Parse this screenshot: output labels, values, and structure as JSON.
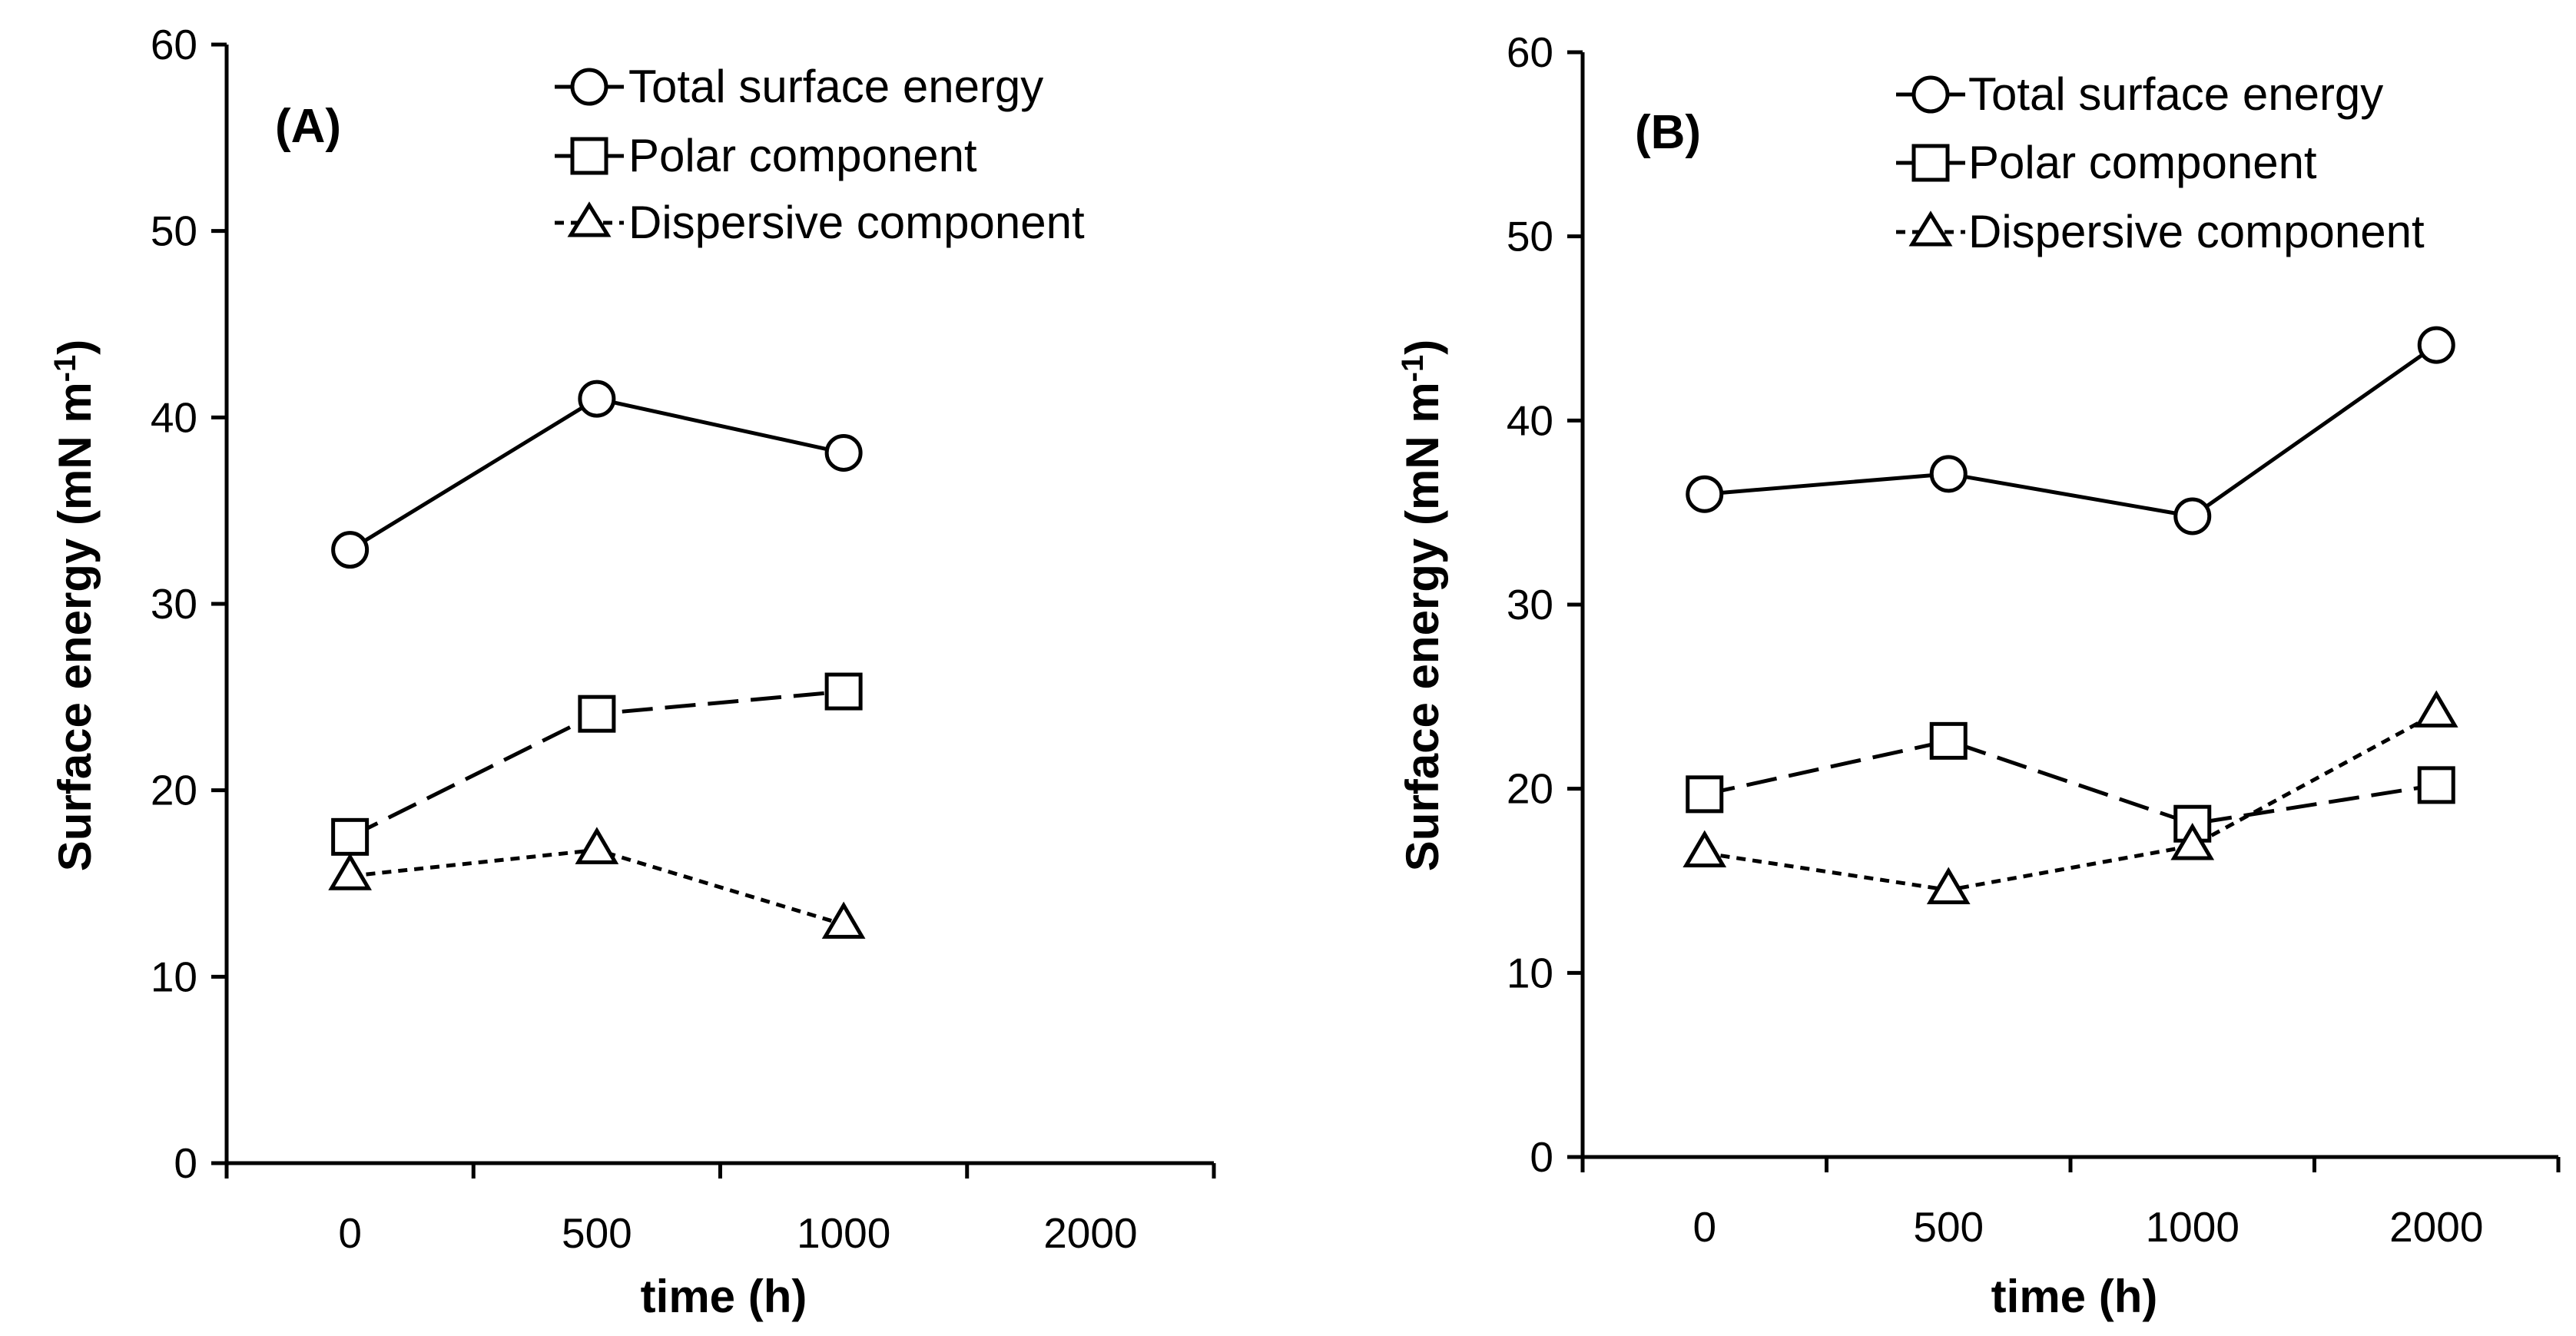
{
  "chart_data": [
    {
      "type": "line",
      "panel_label": "(A)",
      "xlabel": "time (h)",
      "ylabel": "Surface energy (mN m",
      "ylabel_sup": "-1",
      "ylabel_close": ")",
      "categories": [
        "0",
        "500",
        "1000",
        "2000"
      ],
      "ylim": [
        0,
        60
      ],
      "yticks": [
        "0",
        "10",
        "20",
        "30",
        "40",
        "50",
        "60"
      ],
      "legend_position": "top-right",
      "series": [
        {
          "name": "Total surface energy",
          "marker": "circle",
          "line": "solid",
          "values": [
            32.9,
            41.0,
            38.1,
            null
          ]
        },
        {
          "name": "Polar component",
          "marker": "square",
          "line": "long-dash",
          "values": [
            17.5,
            24.1,
            25.3,
            null
          ]
        },
        {
          "name": "Dispersive component",
          "marker": "triangle",
          "line": "short-dash",
          "values": [
            15.4,
            16.8,
            12.8,
            null
          ]
        }
      ]
    },
    {
      "type": "line",
      "panel_label": "(B)",
      "xlabel": "time (h)",
      "ylabel": "Surface energy (mN m",
      "ylabel_sup": "-1",
      "ylabel_close": ")",
      "categories": [
        "0",
        "500",
        "1000",
        "2000"
      ],
      "ylim": [
        0,
        60
      ],
      "yticks": [
        "0",
        "10",
        "20",
        "30",
        "40",
        "50",
        "60"
      ],
      "legend_position": "top-right",
      "series": [
        {
          "name": "Total surface energy",
          "marker": "circle",
          "line": "solid",
          "values": [
            36.0,
            37.1,
            34.8,
            44.1
          ]
        },
        {
          "name": "Polar component",
          "marker": "square",
          "line": "long-dash",
          "values": [
            19.7,
            22.6,
            18.1,
            20.2
          ]
        },
        {
          "name": "Dispersive component",
          "marker": "triangle",
          "line": "short-dash",
          "values": [
            16.5,
            14.5,
            16.9,
            24.1
          ]
        }
      ]
    }
  ]
}
